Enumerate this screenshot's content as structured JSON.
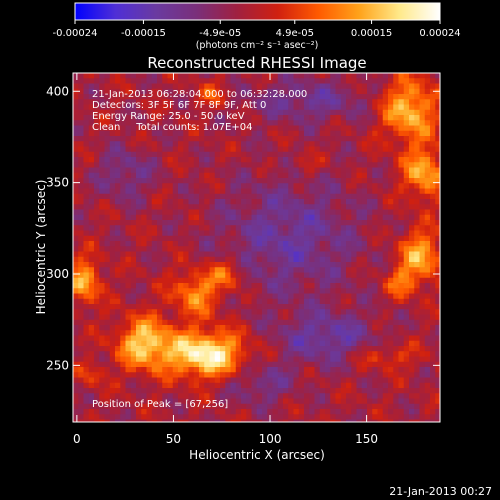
{
  "chart_data": {
    "type": "heatmap",
    "title": "Reconstructed RHESSI Image",
    "xlabel": "Heliocentric X (arcsec)",
    "ylabel": "Heliocentric Y (arcsec)",
    "xlim": [
      -2,
      188
    ],
    "ylim": [
      219,
      410
    ],
    "x_ticks": [
      0,
      50,
      100,
      150
    ],
    "y_ticks": [
      250,
      300,
      350,
      400
    ],
    "colorbar": {
      "range": [
        -0.00024,
        0.00024
      ],
      "ticks": [
        "-0.00024",
        "-0.00015",
        "-4.9e-05",
        "4.9e-05",
        "0.00015",
        "0.00024"
      ],
      "tick_values": [
        -0.00024,
        -0.00015,
        -4.9e-05,
        4.9e-05,
        0.00015,
        0.00024
      ],
      "units_label": "(photons cm⁻² s⁻¹ asec⁻²)",
      "color_stops": [
        "#0000ff",
        "#4f2fd6",
        "#6a3aa0",
        "#7a2f7a",
        "#a02040",
        "#d02010",
        "#ff5a00",
        "#ffa21a",
        "#ffe98a",
        "#ffffff"
      ]
    },
    "annotations": [
      "21-Jan-2013 06:28:04.000 to 06:32:28.000",
      "Detectors: 3F 5F 6F 7F 8F 9F, Att 0",
      "Energy Range: 25.0 - 50.0 keV",
      "Clean     Total counts: 1.07E+04"
    ],
    "peak": {
      "label": "Position of Peak = [67,256]",
      "x": 67,
      "y": 256
    },
    "hot_regions": [
      {
        "x": 67,
        "y": 256,
        "sx": 14,
        "sy": 9,
        "amp": 0.00024
      },
      {
        "x": 35,
        "y": 262,
        "sx": 10,
        "sy": 10,
        "amp": 0.00019
      },
      {
        "x": 62,
        "y": 290,
        "sx": 9,
        "sy": 9,
        "amp": 0.00014
      },
      {
        "x": 78,
        "y": 300,
        "sx": 6,
        "sy": 6,
        "amp": 0.00011
      },
      {
        "x": 4,
        "y": 296,
        "sx": 6,
        "sy": 9,
        "amp": 0.00016
      },
      {
        "x": 172,
        "y": 390,
        "sx": 10,
        "sy": 12,
        "amp": 0.00018
      },
      {
        "x": 180,
        "y": 355,
        "sx": 8,
        "sy": 10,
        "amp": 0.00016
      },
      {
        "x": 178,
        "y": 310,
        "sx": 8,
        "sy": 10,
        "amp": 0.00016
      },
      {
        "x": 168,
        "y": 295,
        "sx": 6,
        "sy": 6,
        "amp": 0.0001
      },
      {
        "x": 160,
        "y": 255,
        "sx": 12,
        "sy": 5,
        "amp": 8e-05
      },
      {
        "x": 118,
        "y": 360,
        "sx": 5,
        "sy": 4,
        "amp": 6e-05
      },
      {
        "x": 70,
        "y": 398,
        "sx": 6,
        "sy": 5,
        "amp": 8e-05
      },
      {
        "x": 8,
        "y": 245,
        "sx": 5,
        "sy": 5,
        "amp": 7e-05
      }
    ],
    "cold_regions": [
      {
        "x": 110,
        "y": 320,
        "sx": 25,
        "sy": 22,
        "amp": 0.0001
      },
      {
        "x": 130,
        "y": 265,
        "sx": 18,
        "sy": 10,
        "amp": 0.00011
      },
      {
        "x": 120,
        "y": 395,
        "sx": 22,
        "sy": 8,
        "amp": 9e-05
      },
      {
        "x": 25,
        "y": 355,
        "sx": 10,
        "sy": 10,
        "amp": 8e-05
      },
      {
        "x": 95,
        "y": 240,
        "sx": 12,
        "sy": 8,
        "amp": 8e-05
      }
    ]
  },
  "footer": {
    "timestamp": "21-Jan-2013 00:27"
  }
}
